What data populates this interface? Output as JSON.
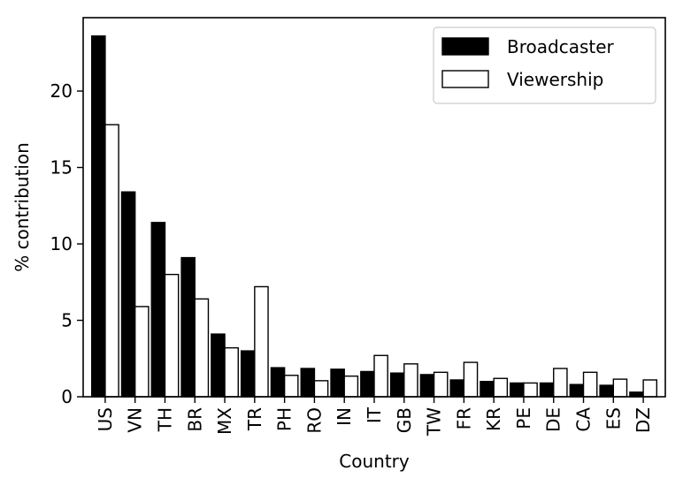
{
  "chart_data": {
    "type": "bar",
    "xlabel": "Country",
    "ylabel": "% contribution",
    "categories": [
      "US",
      "VN",
      "TH",
      "BR",
      "MX",
      "TR",
      "PH",
      "RO",
      "IN",
      "IT",
      "GB",
      "TW",
      "FR",
      "KR",
      "PE",
      "DE",
      "CA",
      "ES",
      "DZ"
    ],
    "series": [
      {
        "name": "Broadcaster",
        "color": "#000000",
        "fill": "#000000",
        "values": [
          23.6,
          13.4,
          11.4,
          9.1,
          4.1,
          3.0,
          1.9,
          1.85,
          1.8,
          1.65,
          1.55,
          1.45,
          1.1,
          1.0,
          0.9,
          0.9,
          0.8,
          0.75,
          0.3
        ]
      },
      {
        "name": "Viewership",
        "color": "#000000",
        "fill": "#ffffff",
        "values": [
          17.8,
          5.9,
          8.0,
          6.4,
          3.2,
          7.2,
          1.4,
          1.05,
          1.35,
          2.7,
          2.15,
          1.6,
          2.25,
          1.2,
          0.9,
          1.85,
          1.6,
          1.15,
          1.1
        ]
      }
    ],
    "ylim": [
      0,
      24.8
    ],
    "yticks": [
      0,
      5,
      10,
      15,
      20
    ],
    "legend": "top-right",
    "grid": false
  }
}
